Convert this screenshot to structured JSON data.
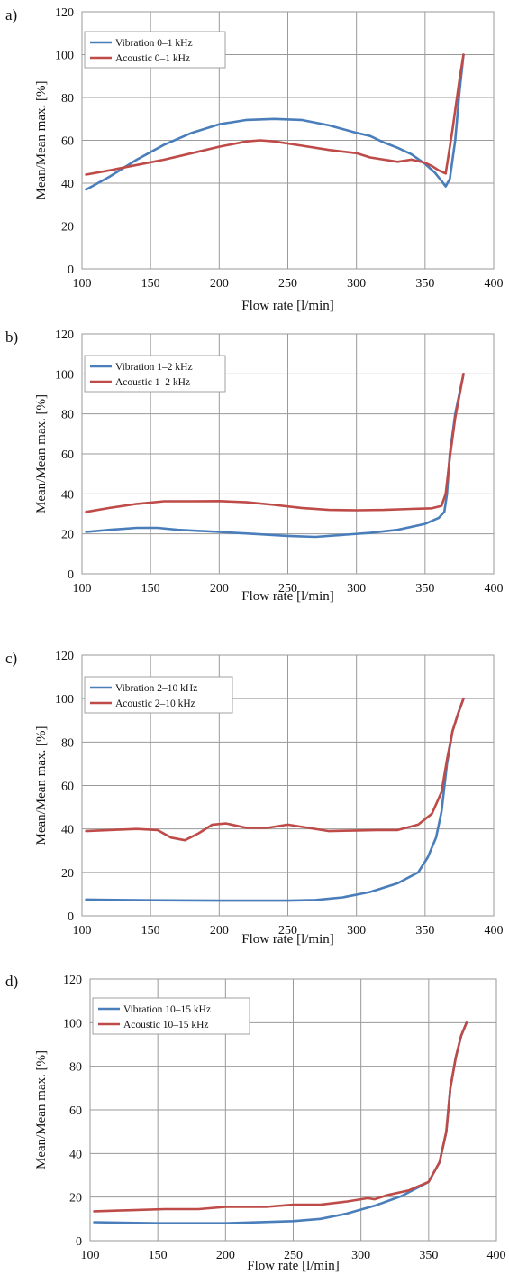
{
  "chart_data": [
    {
      "panel": "a)",
      "type": "line",
      "xlabel": "Flow rate [l/min]",
      "ylabel": "Mean/Mean max. [%]",
      "xlim": [
        100,
        400
      ],
      "ylim": [
        0,
        120
      ],
      "xticks": [
        "100",
        "150",
        "200",
        "250",
        "300",
        "350",
        "400"
      ],
      "yticks": [
        "0",
        "20",
        "40",
        "60",
        "80",
        "100",
        "120"
      ],
      "grid": true,
      "legend_position": "top-left",
      "series": [
        {
          "name": "Vibration 0–1 kHz",
          "color": "#4a7ebb",
          "x": [
            103,
            120,
            140,
            160,
            180,
            200,
            220,
            240,
            260,
            280,
            300,
            310,
            320,
            330,
            340,
            350,
            357,
            362,
            365,
            368,
            372,
            375,
            378
          ],
          "y": [
            37,
            43,
            51,
            58,
            63.5,
            67.5,
            69.5,
            70,
            69.5,
            67,
            63.5,
            62,
            59,
            56.5,
            53.5,
            49,
            45,
            41,
            38.5,
            42,
            60,
            82,
            100
          ]
        },
        {
          "name": "Acoustic 0–1 kHz",
          "color": "#be4b48",
          "x": [
            103,
            120,
            140,
            160,
            180,
            200,
            220,
            230,
            240,
            260,
            280,
            300,
            310,
            320,
            330,
            340,
            350,
            355,
            360,
            365,
            370,
            375,
            378
          ],
          "y": [
            44,
            46,
            48.5,
            51,
            54,
            57,
            59.5,
            60,
            59.5,
            57.5,
            55.5,
            54,
            52,
            51,
            50,
            51,
            49.5,
            48,
            46,
            44.5,
            65,
            88,
            100
          ]
        }
      ]
    },
    {
      "panel": "b)",
      "type": "line",
      "xlabel": "Flow rate [l/min]",
      "ylabel": "Mean/Mean max. [%]",
      "xlim": [
        100,
        400
      ],
      "ylim": [
        0,
        120
      ],
      "xticks": [
        "100",
        "150",
        "200",
        "250",
        "300",
        "350",
        "400"
      ],
      "yticks": [
        "0",
        "20",
        "40",
        "60",
        "80",
        "100",
        "120"
      ],
      "grid": true,
      "legend_position": "top-left",
      "series": [
        {
          "name": "Vibration 1–2 kHz",
          "color": "#4a7ebb",
          "x": [
            103,
            120,
            140,
            155,
            170,
            200,
            225,
            250,
            270,
            290,
            310,
            330,
            350,
            360,
            364,
            366,
            368,
            372,
            378
          ],
          "y": [
            21,
            22,
            23,
            23,
            22,
            21,
            20,
            19,
            18.5,
            19.5,
            20.5,
            22,
            25,
            28,
            31,
            40,
            60,
            80,
            100
          ]
        },
        {
          "name": "Acoustic 1–2 kHz",
          "color": "#be4b48",
          "x": [
            103,
            120,
            140,
            160,
            180,
            200,
            220,
            240,
            260,
            280,
            300,
            320,
            340,
            355,
            362,
            365,
            368,
            372,
            378
          ],
          "y": [
            31,
            33,
            35,
            36.3,
            36.3,
            36.4,
            35.8,
            34.5,
            33,
            32,
            31.8,
            32,
            32.5,
            32.8,
            34,
            40,
            58,
            78,
            100
          ]
        }
      ]
    },
    {
      "panel": "c)",
      "type": "line",
      "xlabel": "Flow rate [l/min]",
      "ylabel": "Mean/Mean max. [%]",
      "xlim": [
        100,
        400
      ],
      "ylim": [
        0,
        120
      ],
      "xticks": [
        "100",
        "150",
        "200",
        "250",
        "300",
        "350",
        "400"
      ],
      "yticks": [
        "0",
        "20",
        "40",
        "60",
        "80",
        "100",
        "120"
      ],
      "grid": true,
      "legend_position": "top-left",
      "series": [
        {
          "name": "Vibration 2–10 kHz",
          "color": "#4a7ebb",
          "x": [
            103,
            150,
            200,
            250,
            270,
            290,
            310,
            330,
            345,
            352,
            358,
            362,
            366,
            370,
            374,
            378
          ],
          "y": [
            7.5,
            7.2,
            7,
            7,
            7.3,
            8.5,
            11,
            15,
            20,
            27,
            36,
            48,
            70,
            85,
            93,
            100
          ]
        },
        {
          "name": "Acoustic 2–10 kHz",
          "color": "#be4b48",
          "x": [
            103,
            120,
            140,
            155,
            165,
            175,
            185,
            195,
            205,
            220,
            235,
            250,
            265,
            280,
            300,
            315,
            330,
            345,
            355,
            362,
            366,
            370,
            374,
            378
          ],
          "y": [
            39,
            39.5,
            40,
            39.5,
            36,
            34.8,
            38,
            42,
            42.5,
            40.5,
            40.5,
            42,
            40.5,
            39,
            39.3,
            39.5,
            39.5,
            42,
            47,
            57,
            72,
            85,
            93,
            100
          ]
        }
      ]
    },
    {
      "panel": "d)",
      "type": "line",
      "xlabel": "Flow rate [l/min]",
      "ylabel": "Mean/Mean max. [%]",
      "xlim": [
        100,
        400
      ],
      "ylim": [
        0,
        120
      ],
      "xticks": [
        "100",
        "150",
        "200",
        "250",
        "300",
        "350",
        "400"
      ],
      "yticks": [
        "0",
        "20",
        "40",
        "60",
        "80",
        "100",
        "120"
      ],
      "grid": true,
      "legend_position": "top-left",
      "series": [
        {
          "name": "Vibration 10–15 kHz",
          "color": "#4a7ebb",
          "x": [
            103,
            150,
            200,
            250,
            270,
            290,
            310,
            330,
            350,
            358,
            363,
            366,
            370,
            374,
            378
          ],
          "y": [
            8.5,
            8,
            8,
            9,
            10,
            12.5,
            16,
            20.5,
            27,
            36,
            50,
            70,
            84,
            94,
            100
          ]
        },
        {
          "name": "Acoustic 10–15 kHz",
          "color": "#be4b48",
          "x": [
            103,
            130,
            155,
            180,
            200,
            230,
            250,
            270,
            290,
            305,
            310,
            320,
            335,
            350,
            358,
            363,
            366,
            370,
            374,
            378
          ],
          "y": [
            13.5,
            14,
            14.5,
            14.5,
            15.5,
            15.5,
            16.5,
            16.5,
            18,
            19.5,
            19,
            21,
            23,
            27,
            36,
            50,
            70,
            84,
            94,
            100
          ]
        }
      ]
    }
  ]
}
